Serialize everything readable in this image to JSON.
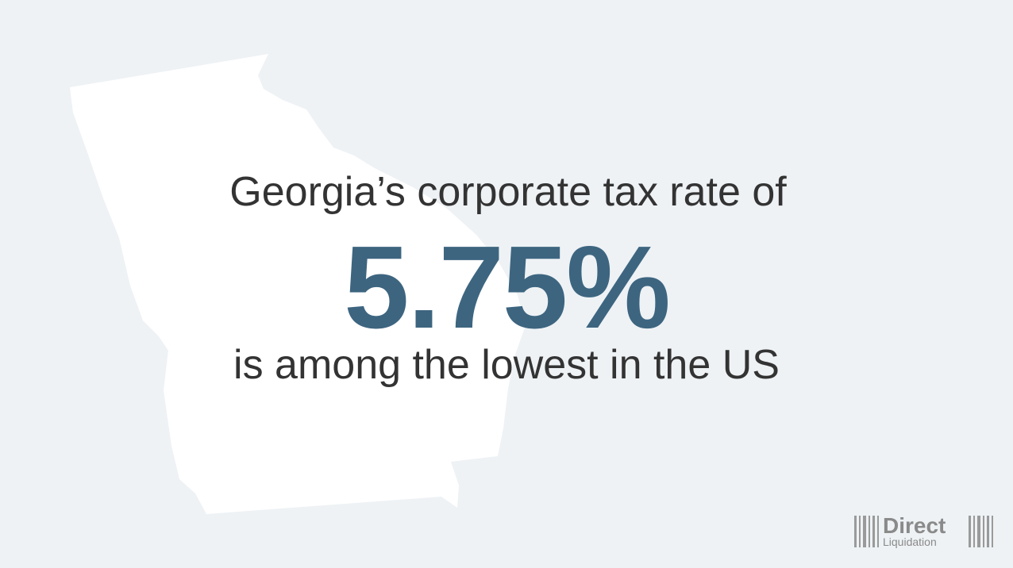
{
  "headline": "Georgia’s corporate tax rate of",
  "stat": "5.75%",
  "subline": "is among the lowest in the US",
  "logo": {
    "line1": "Direct",
    "line2": "Liquidation"
  }
}
